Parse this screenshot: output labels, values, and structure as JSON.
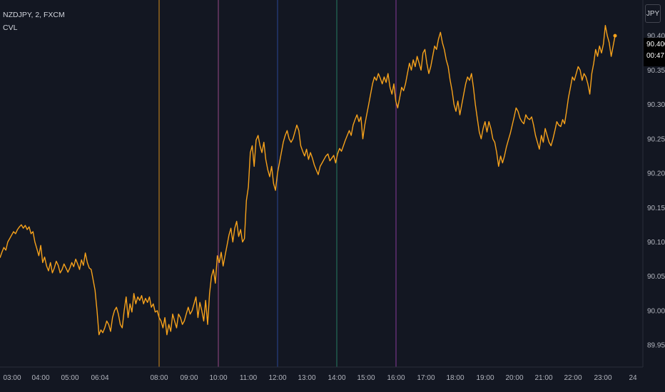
{
  "header": {
    "symbol_line": "NZDJPY, 2, FXCM",
    "indicator_line": "CVL"
  },
  "currency_button": "JPY",
  "last_price": {
    "price": "90.400",
    "countdown": "00:47"
  },
  "colors": {
    "background": "#131722",
    "line": "#f7a21b",
    "axis_text": "#b2b5be",
    "session_lines": [
      "#f7a21b",
      "#b0549a",
      "#2e4fa8",
      "#2a8f6e",
      "#9c3fb0"
    ]
  },
  "chart_data": {
    "type": "line",
    "series": [
      {
        "values": [
          90.077,
          90.085,
          90.092,
          90.088,
          90.1,
          90.105,
          90.11,
          90.115,
          90.112,
          90.118,
          90.122,
          90.125,
          90.12,
          90.124,
          90.118,
          90.122,
          90.112,
          90.115,
          90.1,
          90.09,
          90.08,
          90.095,
          90.07,
          90.078,
          90.065,
          90.058,
          90.07,
          90.055,
          90.062,
          90.072,
          90.066,
          90.055,
          90.06,
          90.068,
          90.062,
          90.056,
          90.062,
          90.07,
          90.064,
          90.075,
          90.068,
          90.06,
          90.074,
          90.066,
          90.084,
          90.07,
          90.062,
          90.06,
          90.045,
          90.03,
          90.0,
          89.965,
          89.972,
          89.968,
          89.975,
          89.985,
          89.98,
          89.97,
          89.99,
          90.0,
          90.005,
          89.995,
          89.98,
          89.975,
          90.0,
          90.02,
          89.99,
          90.01,
          89.998,
          90.025,
          90.01,
          90.02,
          90.015,
          90.022,
          90.01,
          90.018,
          90.012,
          90.02,
          90.005,
          90.01,
          89.998,
          90.0,
          89.99,
          89.985,
          89.975,
          89.99,
          89.965,
          89.98,
          89.97,
          89.995,
          89.985,
          89.975,
          89.995,
          89.99,
          89.98,
          89.985,
          89.995,
          90.005,
          89.995,
          90.0,
          90.01,
          90.02,
          89.99,
          90.012,
          90.0,
          89.985,
          90.015,
          89.98,
          90.025,
          90.05,
          90.06,
          90.04,
          90.08,
          90.07,
          90.085,
          90.065,
          90.08,
          90.095,
          90.11,
          90.12,
          90.1,
          90.12,
          90.13,
          90.108,
          90.118,
          90.1,
          90.105,
          90.16,
          90.18,
          90.23,
          90.24,
          90.21,
          90.248,
          90.255,
          90.24,
          90.23,
          90.245,
          90.22,
          90.205,
          90.195,
          90.21,
          90.185,
          90.175,
          90.2,
          90.215,
          90.23,
          90.245,
          90.255,
          90.262,
          90.25,
          90.245,
          90.25,
          90.26,
          90.27,
          90.262,
          90.24,
          90.232,
          90.225,
          90.235,
          90.22,
          90.23,
          90.222,
          90.212,
          90.205,
          90.198,
          90.21,
          90.215,
          90.22,
          90.225,
          90.228,
          90.218,
          90.222,
          90.226,
          90.215,
          90.228,
          90.236,
          90.232,
          90.24,
          90.248,
          90.255,
          90.262,
          90.255,
          90.27,
          90.278,
          90.285,
          90.275,
          90.282,
          90.25,
          90.27,
          90.285,
          90.3,
          90.315,
          90.33,
          90.34,
          90.335,
          90.345,
          90.338,
          90.33,
          90.34,
          90.332,
          90.345,
          90.325,
          90.315,
          90.33,
          90.305,
          90.295,
          90.31,
          90.325,
          90.32,
          90.33,
          90.345,
          90.36,
          90.35,
          90.365,
          90.355,
          90.37,
          90.36,
          90.35,
          90.375,
          90.38,
          90.36,
          90.345,
          90.355,
          90.37,
          90.385,
          90.38,
          90.395,
          90.405,
          90.39,
          90.38,
          90.365,
          90.355,
          90.335,
          90.32,
          90.3,
          90.29,
          90.305,
          90.285,
          90.3,
          90.315,
          90.33,
          90.34,
          90.335,
          90.345,
          90.325,
          90.3,
          90.28,
          90.26,
          90.25,
          90.265,
          90.275,
          90.26,
          90.275,
          90.265,
          90.25,
          90.245,
          90.23,
          90.21,
          90.225,
          90.215,
          90.225,
          90.238,
          90.248,
          90.258,
          90.27,
          90.282,
          90.295,
          90.29,
          90.28,
          90.275,
          90.272,
          90.285,
          90.28,
          90.278,
          90.282,
          90.27,
          90.255,
          90.245,
          90.235,
          90.255,
          90.245,
          90.265,
          90.255,
          90.245,
          90.24,
          90.25,
          90.262,
          90.275,
          90.27,
          90.268,
          90.278,
          90.272,
          90.29,
          90.31,
          90.325,
          90.34,
          90.335,
          90.345,
          90.355,
          90.35,
          90.335,
          90.345,
          90.34,
          90.33,
          90.315,
          90.345,
          90.36,
          90.38,
          90.37,
          90.385,
          90.375,
          90.388,
          90.415,
          90.4,
          90.39,
          90.37,
          90.385,
          90.4
        ]
      }
    ],
    "ylim": [
      89.918,
      90.452
    ],
    "y_ticks": [
      "90.400",
      "90.350",
      "90.300",
      "90.250",
      "90.200",
      "90.150",
      "90.100",
      "90.050",
      "90.000",
      "89.950"
    ],
    "x_ticks": [
      "03:00",
      "04:00",
      "05:00",
      "06:04",
      "08:00",
      "09:00",
      "10:00",
      "11:00",
      "12:00",
      "13:00",
      "14:00",
      "15:00",
      "16:00",
      "17:00",
      "18:00",
      "19:00",
      "20:00",
      "21:00",
      "22:00",
      "23:00",
      "24"
    ],
    "session_markers": [
      "08:00",
      "10:00",
      "12:00",
      "14:00",
      "16:00"
    ],
    "grid": false,
    "legend": "none"
  }
}
